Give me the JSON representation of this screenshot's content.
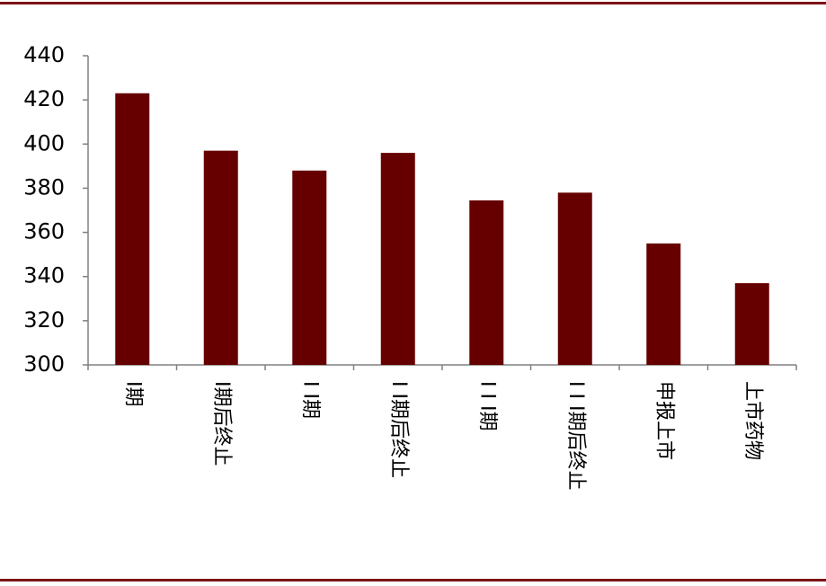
{
  "chart_data": {
    "type": "bar",
    "categories": [
      "I期",
      "I期后终止",
      "I I期",
      "I I期后终止",
      "I I I期",
      "I I I期后终止",
      "申报上市",
      "上市药物"
    ],
    "values": [
      423,
      397,
      388,
      396,
      374.5,
      378,
      355,
      337
    ],
    "color": "#660000",
    "ylim": [
      300,
      440
    ],
    "yticks": [
      300,
      320,
      340,
      360,
      380,
      400,
      420,
      440
    ],
    "grid": false
  }
}
